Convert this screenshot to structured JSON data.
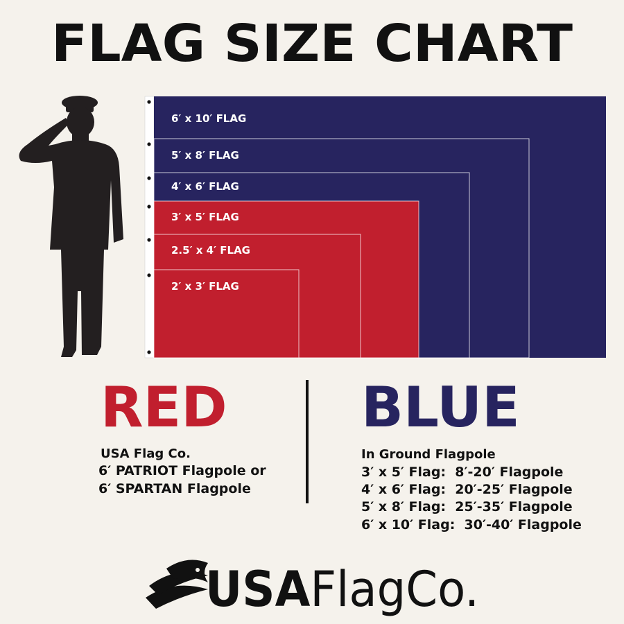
{
  "header": {
    "title": "FLAG SIZE CHART"
  },
  "flags": [
    "6′ x 10′ FLAG",
    "5′ x 8′ FLAG",
    "4′ x 6′ FLAG",
    "3′ x 5′ FLAG",
    "2.5′ x 4′ FLAG",
    "2′ x 3′ FLAG"
  ],
  "red": {
    "heading": "RED",
    "lines": [
      "USA Flag Co.",
      "6′ PATRIOT Flagpole or",
      "6′ SPARTAN Flagpole"
    ]
  },
  "blue": {
    "heading": "BLUE",
    "lines": [
      "In Ground Flagpole",
      "3′ x 5′ Flag:  8′-20′ Flagpole",
      "4′ x 6′ Flag:  20′-25′ Flagpole",
      "5′ x 8′ Flag:  25′-35′ Flagpole",
      "6′ x 10′ Flag:  30′-40′ Flagpole"
    ]
  },
  "logo": {
    "bold": "USA",
    "light": "FlagCo."
  }
}
